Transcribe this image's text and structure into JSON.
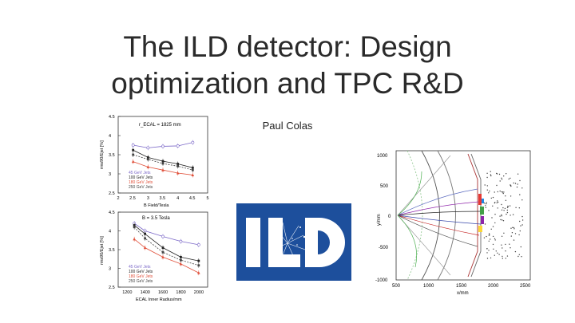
{
  "slide": {
    "title_line1": "The ILD detector: Design",
    "title_line2": "optimization and TPC R&D",
    "author": "Paul Colas"
  },
  "colors": {
    "series_45": "#7b68c8",
    "series_100": "#222222",
    "series_180": "#e0503a",
    "series_250": "#444444",
    "logo_blue": "#1d4f9c"
  },
  "icons": [
    "ild-logo-icon"
  ],
  "plot_top": {
    "annotation": "r_ECAL = 1825 mm",
    "ylabel": "rms90/Ejet [%]",
    "xlabel": "B Field/Tesla",
    "yticks": [
      "2.5",
      "3",
      "3.5",
      "4",
      "4.5"
    ],
    "xticks": [
      "2",
      "2.5",
      "3",
      "3.5",
      "4",
      "4.5",
      "5"
    ],
    "legend": [
      "45 GeV Jets",
      "100 GeV Jets",
      "180 GeV Jets",
      "250 GeV Jets"
    ]
  },
  "plot_bottom": {
    "annotation": "B = 3.5 Tesla",
    "ylabel": "rms90/Ejet [%]",
    "xlabel": "ECAL Inner Radius/mm",
    "yticks": [
      "2.5",
      "3",
      "3.5",
      "4",
      "4.5"
    ],
    "xticks": [
      "1200",
      "1400",
      "1600",
      "1800",
      "2000"
    ],
    "legend": [
      "45 GeV Jets",
      "100 GeV Jets",
      "180 GeV Jets",
      "250 GeV Jets"
    ]
  },
  "event_display": {
    "ylabel": "y/mm",
    "xlabel": "x/mm",
    "yticks": [
      "1000",
      "500",
      "0",
      "-500",
      "-1000"
    ],
    "xticks": [
      "500",
      "1000",
      "1500",
      "2000",
      "2500"
    ]
  },
  "chart_data": [
    {
      "type": "line",
      "annotation": "r_ECAL = 1825 mm",
      "xlabel": "B Field/Tesla",
      "ylabel": "rms90/Ejet [%]",
      "xlim": [
        2,
        5
      ],
      "ylim": [
        2.5,
        4.5
      ],
      "x": [
        2.5,
        3,
        3.5,
        4,
        4.5
      ],
      "series": [
        {
          "name": "45 GeV Jets",
          "values": [
            3.75,
            3.68,
            3.72,
            3.73,
            3.82
          ]
        },
        {
          "name": "100 GeV Jets",
          "values": [
            3.62,
            3.43,
            3.33,
            3.26,
            3.16
          ]
        },
        {
          "name": "180 GeV Jets",
          "values": [
            3.32,
            3.18,
            3.1,
            3.02,
            2.97
          ]
        },
        {
          "name": "250 GeV Jets",
          "values": [
            3.5,
            3.38,
            3.27,
            3.2,
            3.1
          ]
        }
      ]
    },
    {
      "type": "line",
      "annotation": "B = 3.5 Tesla",
      "xlabel": "ECAL Inner Radius/mm",
      "ylabel": "rms90/Ejet [%]",
      "xlim": [
        1100,
        2100
      ],
      "ylim": [
        2.5,
        4.5
      ],
      "x": [
        1280,
        1400,
        1600,
        1800,
        2000
      ],
      "series": [
        {
          "name": "45 GeV Jets",
          "values": [
            4.2,
            4.0,
            3.85,
            3.72,
            3.63
          ]
        },
        {
          "name": "100 GeV Jets",
          "values": [
            4.15,
            3.92,
            3.55,
            3.3,
            3.2
          ]
        },
        {
          "name": "180 GeV Jets",
          "values": [
            3.78,
            3.55,
            3.3,
            3.12,
            2.88
          ]
        },
        {
          "name": "250 GeV Jets",
          "values": [
            4.1,
            3.8,
            3.43,
            3.22,
            3.08
          ]
        }
      ]
    }
  ]
}
